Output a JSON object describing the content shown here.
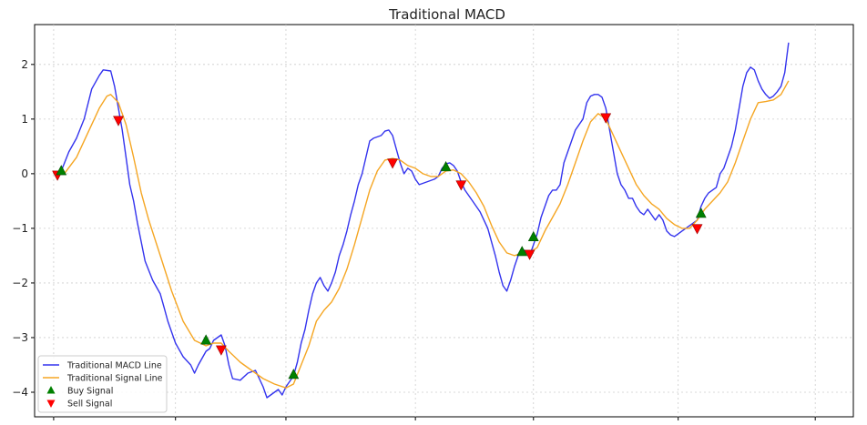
{
  "chart_data": {
    "type": "line",
    "title": "Traditional MACD",
    "xlabel": "",
    "ylabel": "",
    "xlim": [
      -5,
      210
    ],
    "ylim": [
      -4.45,
      2.73
    ],
    "yticks": [
      2,
      1,
      0,
      -1,
      -2,
      -3,
      -4
    ],
    "ytick_labels": [
      "2",
      "1",
      "0",
      "−1",
      "−2",
      "−3",
      "−4"
    ],
    "xticks": [
      0,
      32,
      61,
      95,
      126,
      164,
      200
    ],
    "grid": true,
    "legend_position": "lower-left",
    "series": [
      {
        "name": "Traditional MACD Line",
        "color": "#3333ee",
        "points": [
          [
            0,
            0.0
          ],
          [
            2,
            0.05
          ],
          [
            4,
            0.4
          ],
          [
            6,
            0.65
          ],
          [
            8,
            1.0
          ],
          [
            10,
            1.55
          ],
          [
            12,
            1.8
          ],
          [
            13,
            1.9
          ],
          [
            15,
            1.88
          ],
          [
            16,
            1.6
          ],
          [
            17,
            1.2
          ],
          [
            18,
            0.8
          ],
          [
            19,
            0.3
          ],
          [
            20,
            -0.2
          ],
          [
            21,
            -0.5
          ],
          [
            22,
            -0.9
          ],
          [
            24,
            -1.6
          ],
          [
            26,
            -1.95
          ],
          [
            28,
            -2.2
          ],
          [
            29,
            -2.45
          ],
          [
            30,
            -2.7
          ],
          [
            32,
            -3.1
          ],
          [
            34,
            -3.35
          ],
          [
            36,
            -3.5
          ],
          [
            37,
            -3.65
          ],
          [
            38,
            -3.5
          ],
          [
            40,
            -3.25
          ],
          [
            41,
            -3.2
          ],
          [
            42,
            -3.05
          ],
          [
            43,
            -3.0
          ],
          [
            44,
            -2.95
          ],
          [
            45,
            -3.15
          ],
          [
            46,
            -3.5
          ],
          [
            47,
            -3.75
          ],
          [
            49,
            -3.78
          ],
          [
            51,
            -3.65
          ],
          [
            53,
            -3.6
          ],
          [
            55,
            -3.9
          ],
          [
            56,
            -4.1
          ],
          [
            58,
            -4.0
          ],
          [
            59,
            -3.95
          ],
          [
            60,
            -4.05
          ],
          [
            61,
            -3.9
          ],
          [
            62,
            -3.8
          ],
          [
            63,
            -3.7
          ],
          [
            64,
            -3.45
          ],
          [
            65,
            -3.1
          ],
          [
            66,
            -2.85
          ],
          [
            67,
            -2.5
          ],
          [
            68,
            -2.2
          ],
          [
            69,
            -2.0
          ],
          [
            70,
            -1.9
          ],
          [
            71,
            -2.05
          ],
          [
            72,
            -2.15
          ],
          [
            73,
            -2.0
          ],
          [
            74,
            -1.8
          ],
          [
            75,
            -1.5
          ],
          [
            76,
            -1.3
          ],
          [
            77,
            -1.05
          ],
          [
            78,
            -0.75
          ],
          [
            79,
            -0.5
          ],
          [
            80,
            -0.2
          ],
          [
            81,
            0.0
          ],
          [
            82,
            0.3
          ],
          [
            83,
            0.6
          ],
          [
            84,
            0.65
          ],
          [
            86,
            0.7
          ],
          [
            87,
            0.78
          ],
          [
            88,
            0.8
          ],
          [
            89,
            0.7
          ],
          [
            90,
            0.45
          ],
          [
            91,
            0.2
          ],
          [
            92,
            0.0
          ],
          [
            93,
            0.1
          ],
          [
            94,
            0.05
          ],
          [
            95,
            -0.1
          ],
          [
            96,
            -0.2
          ],
          [
            98,
            -0.15
          ],
          [
            100,
            -0.1
          ],
          [
            101,
            -0.05
          ],
          [
            102,
            0.1
          ],
          [
            103,
            0.18
          ],
          [
            104,
            0.2
          ],
          [
            105,
            0.15
          ],
          [
            106,
            0.05
          ],
          [
            107,
            -0.15
          ],
          [
            108,
            -0.3
          ],
          [
            110,
            -0.5
          ],
          [
            112,
            -0.7
          ],
          [
            114,
            -1.0
          ],
          [
            116,
            -1.5
          ],
          [
            117,
            -1.8
          ],
          [
            118,
            -2.05
          ],
          [
            119,
            -2.15
          ],
          [
            120,
            -1.95
          ],
          [
            121,
            -1.7
          ],
          [
            122,
            -1.5
          ],
          [
            123,
            -1.38
          ],
          [
            124,
            -1.42
          ],
          [
            125,
            -1.5
          ],
          [
            126,
            -1.3
          ],
          [
            127,
            -1.1
          ],
          [
            128,
            -0.8
          ],
          [
            129,
            -0.6
          ],
          [
            130,
            -0.4
          ],
          [
            131,
            -0.3
          ],
          [
            132,
            -0.3
          ],
          [
            133,
            -0.2
          ],
          [
            134,
            0.2
          ],
          [
            135,
            0.4
          ],
          [
            136,
            0.6
          ],
          [
            137,
            0.8
          ],
          [
            138,
            0.9
          ],
          [
            139,
            1.0
          ],
          [
            140,
            1.3
          ],
          [
            141,
            1.42
          ],
          [
            142,
            1.45
          ],
          [
            143,
            1.45
          ],
          [
            144,
            1.4
          ],
          [
            145,
            1.2
          ],
          [
            146,
            0.8
          ],
          [
            147,
            0.4
          ],
          [
            148,
            0.0
          ],
          [
            149,
            -0.2
          ],
          [
            150,
            -0.3
          ],
          [
            151,
            -0.45
          ],
          [
            152,
            -0.45
          ],
          [
            153,
            -0.6
          ],
          [
            154,
            -0.7
          ],
          [
            155,
            -0.75
          ],
          [
            156,
            -0.65
          ],
          [
            157,
            -0.75
          ],
          [
            158,
            -0.85
          ],
          [
            159,
            -0.75
          ],
          [
            160,
            -0.85
          ],
          [
            161,
            -1.05
          ],
          [
            162,
            -1.12
          ],
          [
            163,
            -1.15
          ],
          [
            164,
            -1.1
          ],
          [
            165,
            -1.05
          ],
          [
            166,
            -1.0
          ],
          [
            167,
            -0.95
          ],
          [
            168,
            -0.9
          ],
          [
            169,
            -0.85
          ],
          [
            170,
            -0.6
          ],
          [
            171,
            -0.45
          ],
          [
            172,
            -0.35
          ],
          [
            173,
            -0.3
          ],
          [
            174,
            -0.25
          ],
          [
            175,
            0.0
          ],
          [
            176,
            0.1
          ],
          [
            177,
            0.3
          ],
          [
            178,
            0.5
          ],
          [
            179,
            0.8
          ],
          [
            180,
            1.2
          ],
          [
            181,
            1.6
          ],
          [
            182,
            1.85
          ],
          [
            183,
            1.95
          ],
          [
            184,
            1.9
          ],
          [
            185,
            1.7
          ],
          [
            186,
            1.55
          ],
          [
            187,
            1.45
          ],
          [
            188,
            1.38
          ],
          [
            189,
            1.42
          ],
          [
            190,
            1.5
          ],
          [
            191,
            1.6
          ],
          [
            192,
            1.85
          ],
          [
            193,
            2.4
          ]
        ]
      },
      {
        "name": "Traditional Signal Line",
        "color": "#f5a623",
        "points": [
          [
            0,
            0.0
          ],
          [
            3,
            0.02
          ],
          [
            6,
            0.3
          ],
          [
            9,
            0.75
          ],
          [
            12,
            1.2
          ],
          [
            14,
            1.42
          ],
          [
            15,
            1.45
          ],
          [
            17,
            1.3
          ],
          [
            19,
            0.9
          ],
          [
            21,
            0.3
          ],
          [
            23,
            -0.35
          ],
          [
            25,
            -0.85
          ],
          [
            28,
            -1.5
          ],
          [
            31,
            -2.15
          ],
          [
            34,
            -2.7
          ],
          [
            37,
            -3.05
          ],
          [
            40,
            -3.15
          ],
          [
            42,
            -3.1
          ],
          [
            44,
            -3.1
          ],
          [
            46,
            -3.25
          ],
          [
            49,
            -3.45
          ],
          [
            52,
            -3.6
          ],
          [
            55,
            -3.75
          ],
          [
            58,
            -3.85
          ],
          [
            61,
            -3.92
          ],
          [
            63,
            -3.85
          ],
          [
            65,
            -3.5
          ],
          [
            67,
            -3.15
          ],
          [
            69,
            -2.7
          ],
          [
            71,
            -2.5
          ],
          [
            73,
            -2.35
          ],
          [
            75,
            -2.1
          ],
          [
            77,
            -1.75
          ],
          [
            79,
            -1.3
          ],
          [
            81,
            -0.8
          ],
          [
            83,
            -0.3
          ],
          [
            85,
            0.05
          ],
          [
            87,
            0.25
          ],
          [
            89,
            0.28
          ],
          [
            91,
            0.25
          ],
          [
            93,
            0.15
          ],
          [
            95,
            0.1
          ],
          [
            97,
            0.0
          ],
          [
            99,
            -0.05
          ],
          [
            101,
            -0.05
          ],
          [
            103,
            0.05
          ],
          [
            105,
            0.07
          ],
          [
            107,
            0.0
          ],
          [
            109,
            -0.15
          ],
          [
            111,
            -0.35
          ],
          [
            113,
            -0.6
          ],
          [
            115,
            -0.95
          ],
          [
            117,
            -1.25
          ],
          [
            119,
            -1.45
          ],
          [
            121,
            -1.5
          ],
          [
            123,
            -1.45
          ],
          [
            125,
            -1.45
          ],
          [
            127,
            -1.35
          ],
          [
            129,
            -1.05
          ],
          [
            131,
            -0.8
          ],
          [
            133,
            -0.55
          ],
          [
            135,
            -0.2
          ],
          [
            137,
            0.2
          ],
          [
            139,
            0.6
          ],
          [
            141,
            0.95
          ],
          [
            143,
            1.1
          ],
          [
            145,
            1.0
          ],
          [
            147,
            0.7
          ],
          [
            149,
            0.4
          ],
          [
            151,
            0.1
          ],
          [
            153,
            -0.2
          ],
          [
            155,
            -0.4
          ],
          [
            157,
            -0.55
          ],
          [
            159,
            -0.65
          ],
          [
            161,
            -0.82
          ],
          [
            163,
            -0.93
          ],
          [
            165,
            -1.0
          ],
          [
            167,
            -1.0
          ],
          [
            169,
            -0.85
          ],
          [
            171,
            -0.65
          ],
          [
            173,
            -0.5
          ],
          [
            175,
            -0.35
          ],
          [
            177,
            -0.15
          ],
          [
            179,
            0.2
          ],
          [
            181,
            0.6
          ],
          [
            183,
            1.0
          ],
          [
            185,
            1.3
          ],
          [
            187,
            1.32
          ],
          [
            189,
            1.35
          ],
          [
            191,
            1.45
          ],
          [
            193,
            1.7
          ]
        ]
      }
    ],
    "buy_signals": [
      [
        2,
        0.05
      ],
      [
        40,
        -3.05
      ],
      [
        63,
        -3.68
      ],
      [
        103,
        0.12
      ],
      [
        123,
        -1.43
      ],
      [
        126,
        -1.16
      ],
      [
        170,
        -0.73
      ]
    ],
    "sell_signals": [
      [
        1,
        -0.02
      ],
      [
        17,
        0.98
      ],
      [
        44,
        -3.22
      ],
      [
        89,
        0.2
      ],
      [
        107,
        -0.2
      ],
      [
        125,
        -1.47
      ],
      [
        145,
        1.03
      ],
      [
        169,
        -1.0
      ]
    ],
    "legend": [
      {
        "label": "Traditional MACD Line",
        "kind": "line",
        "color": "#3333ee"
      },
      {
        "label": "Traditional Signal Line",
        "kind": "line",
        "color": "#f5a623"
      },
      {
        "label": "Buy Signal",
        "kind": "marker-up",
        "color": "#008000"
      },
      {
        "label": "Sell Signal",
        "kind": "marker-down",
        "color": "#ff0000"
      }
    ]
  }
}
